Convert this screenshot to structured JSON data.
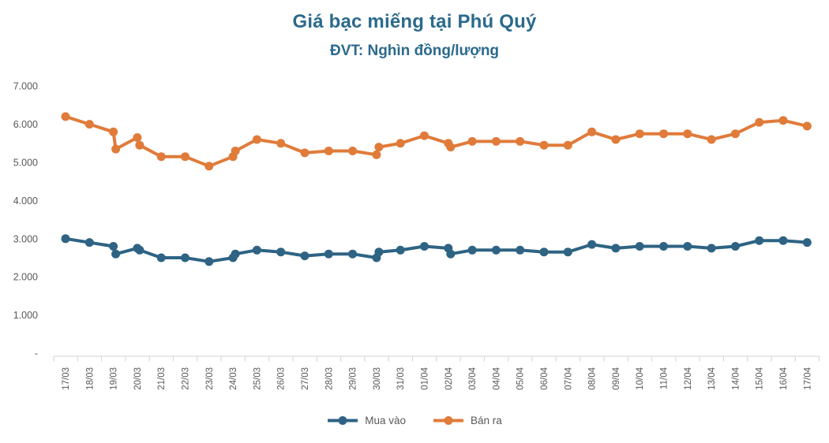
{
  "title": "Giá bạc miếng tại Phú Quý",
  "subtitle": "ĐVT: Nghìn đồng/lượng",
  "colors": {
    "buy_series": "#2E6384",
    "sell_series": "#E07B3A",
    "title_text": "#2B6A8C",
    "axis_text": "#595959",
    "axis_line": "#D9D9D9"
  },
  "legend": {
    "items": [
      {
        "label": "Mua vào",
        "color": "#2E6384"
      },
      {
        "label": "Bán ra",
        "color": "#E07B3A"
      }
    ]
  },
  "chart_data": {
    "type": "line",
    "title": "Giá bạc miếng tại Phú Quý",
    "subtitle_unit": "ĐVT: Nghìn đồng/lượng",
    "legend_position": "bottom",
    "grid": false,
    "x_categories": [
      "17/03",
      "18/03",
      "19/03",
      "20/03",
      "21/03",
      "22/03",
      "23/03",
      "24/03",
      "25/03",
      "26/03",
      "27/03",
      "28/03",
      "29/03",
      "30/03",
      "31/03",
      "01/04",
      "02/04",
      "03/04",
      "04/04",
      "05/04",
      "06/04",
      "07/04",
      "08/04",
      "09/04",
      "10/04",
      "11/04",
      "12/04",
      "13/04",
      "14/04",
      "15/04",
      "16/04",
      "17/04"
    ],
    "y_axis": {
      "tick_labels": [
        "7.000",
        "6.000",
        "5.000",
        "4.000",
        "3.000",
        "2.000",
        "1.000",
        "-"
      ],
      "tick_values": [
        7000,
        6000,
        5000,
        4000,
        3000,
        2000,
        1000,
        0
      ],
      "range": [
        0,
        7000
      ]
    },
    "note": "Some days show two observations (price changed intra-day): 19/03, 20/03, 24/03, 30/03, 02/04",
    "series": [
      {
        "name": "Mua vào",
        "color": "#2E6384",
        "points": [
          {
            "d": "17/03",
            "v": 3000
          },
          {
            "d": "18/03",
            "v": 2900
          },
          {
            "d": "19/03",
            "v": 2800
          },
          {
            "d": "19/03",
            "v": 2600
          },
          {
            "d": "20/03",
            "v": 2750
          },
          {
            "d": "20/03",
            "v": 2700
          },
          {
            "d": "21/03",
            "v": 2500
          },
          {
            "d": "22/03",
            "v": 2500
          },
          {
            "d": "23/03",
            "v": 2400
          },
          {
            "d": "24/03",
            "v": 2500
          },
          {
            "d": "24/03",
            "v": 2600
          },
          {
            "d": "25/03",
            "v": 2700
          },
          {
            "d": "26/03",
            "v": 2650
          },
          {
            "d": "27/03",
            "v": 2550
          },
          {
            "d": "28/03",
            "v": 2600
          },
          {
            "d": "29/03",
            "v": 2600
          },
          {
            "d": "30/03",
            "v": 2500
          },
          {
            "d": "30/03",
            "v": 2650
          },
          {
            "d": "31/03",
            "v": 2700
          },
          {
            "d": "01/04",
            "v": 2800
          },
          {
            "d": "02/04",
            "v": 2750
          },
          {
            "d": "02/04",
            "v": 2600
          },
          {
            "d": "03/04",
            "v": 2700
          },
          {
            "d": "04/04",
            "v": 2700
          },
          {
            "d": "05/04",
            "v": 2700
          },
          {
            "d": "06/04",
            "v": 2650
          },
          {
            "d": "07/04",
            "v": 2650
          },
          {
            "d": "08/04",
            "v": 2850
          },
          {
            "d": "09/04",
            "v": 2750
          },
          {
            "d": "10/04",
            "v": 2800
          },
          {
            "d": "11/04",
            "v": 2800
          },
          {
            "d": "12/04",
            "v": 2800
          },
          {
            "d": "13/04",
            "v": 2750
          },
          {
            "d": "14/04",
            "v": 2800
          },
          {
            "d": "15/04",
            "v": 2950
          },
          {
            "d": "16/04",
            "v": 2950
          },
          {
            "d": "17/04",
            "v": 2900
          }
        ]
      },
      {
        "name": "Bán ra",
        "color": "#E07B3A",
        "points": [
          {
            "d": "17/03",
            "v": 6200
          },
          {
            "d": "18/03",
            "v": 6000
          },
          {
            "d": "19/03",
            "v": 5800
          },
          {
            "d": "19/03",
            "v": 5350
          },
          {
            "d": "20/03",
            "v": 5650
          },
          {
            "d": "20/03",
            "v": 5450
          },
          {
            "d": "21/03",
            "v": 5150
          },
          {
            "d": "22/03",
            "v": 5150
          },
          {
            "d": "23/03",
            "v": 4900
          },
          {
            "d": "24/03",
            "v": 5150
          },
          {
            "d": "24/03",
            "v": 5300
          },
          {
            "d": "25/03",
            "v": 5600
          },
          {
            "d": "26/03",
            "v": 5500
          },
          {
            "d": "27/03",
            "v": 5250
          },
          {
            "d": "28/03",
            "v": 5300
          },
          {
            "d": "29/03",
            "v": 5300
          },
          {
            "d": "30/03",
            "v": 5200
          },
          {
            "d": "30/03",
            "v": 5400
          },
          {
            "d": "31/03",
            "v": 5500
          },
          {
            "d": "01/04",
            "v": 5700
          },
          {
            "d": "02/04",
            "v": 5500
          },
          {
            "d": "02/04",
            "v": 5400
          },
          {
            "d": "03/04",
            "v": 5550
          },
          {
            "d": "04/04",
            "v": 5550
          },
          {
            "d": "05/04",
            "v": 5550
          },
          {
            "d": "06/04",
            "v": 5450
          },
          {
            "d": "07/04",
            "v": 5450
          },
          {
            "d": "08/04",
            "v": 5800
          },
          {
            "d": "09/04",
            "v": 5600
          },
          {
            "d": "10/04",
            "v": 5750
          },
          {
            "d": "11/04",
            "v": 5750
          },
          {
            "d": "12/04",
            "v": 5750
          },
          {
            "d": "13/04",
            "v": 5600
          },
          {
            "d": "14/04",
            "v": 5750
          },
          {
            "d": "15/04",
            "v": 6050
          },
          {
            "d": "16/04",
            "v": 6100
          },
          {
            "d": "17/04",
            "v": 5950
          }
        ]
      }
    ]
  }
}
